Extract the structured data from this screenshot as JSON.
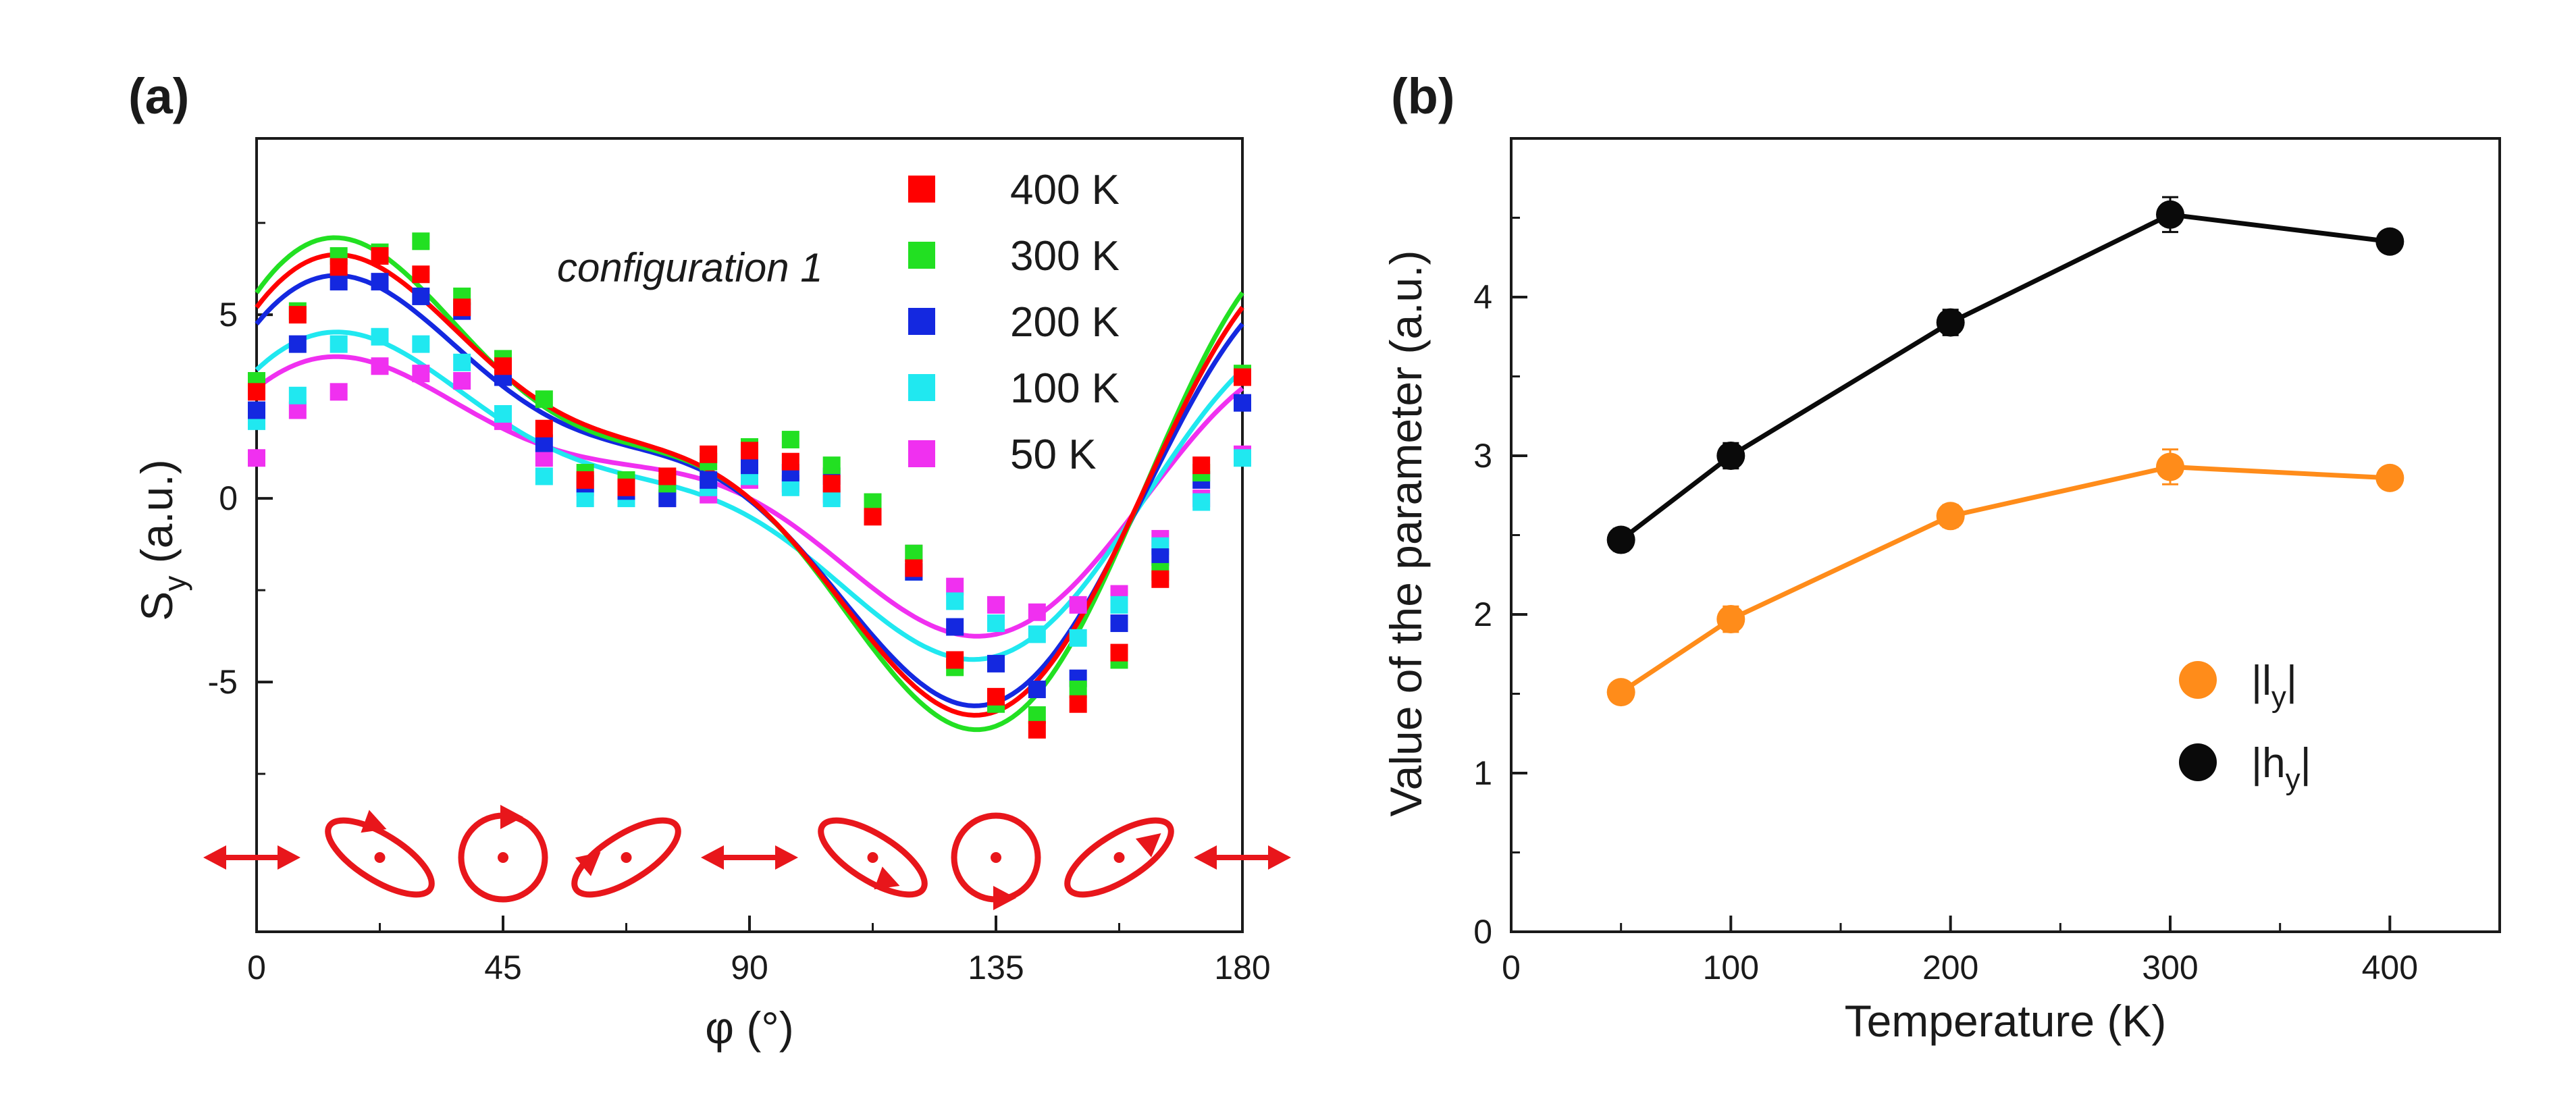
{
  "chart_data": [
    {
      "panel": "(a)",
      "type": "scatter",
      "annotation": "configuration 1",
      "xlabel": "φ (°)",
      "ylabel_main": "S",
      "ylabel_sub": "y",
      "ylabel_tail": " (a.u.)",
      "xlim": [
        0,
        180
      ],
      "ylim": [
        -11.8,
        9.8
      ],
      "xticks": [
        0,
        45,
        90,
        135,
        180
      ],
      "xtick_labels": [
        "0",
        "45",
        "90",
        "135",
        "180"
      ],
      "yticks": [
        -5,
        0,
        5
      ],
      "ytick_labels": [
        "-5",
        "0",
        "5"
      ],
      "polarization_icons": [
        {
          "kind": "linear",
          "x": 0
        },
        {
          "kind": "ellipse-cw",
          "x": 22.5
        },
        {
          "kind": "circle",
          "x": 45
        },
        {
          "kind": "ellipse-ccw",
          "x": 67.5
        },
        {
          "kind": "linear",
          "x": 90
        },
        {
          "kind": "ellipse-cw-down",
          "x": 112.5
        },
        {
          "kind": "circle-down",
          "x": 135
        },
        {
          "kind": "ellipse-ccw-up",
          "x": 157.5
        },
        {
          "kind": "linear",
          "x": 180
        }
      ],
      "x": [
        0,
        7.5,
        15,
        22.5,
        30,
        37.5,
        45,
        52.5,
        60,
        67.5,
        75,
        82.5,
        90,
        97.5,
        105,
        112.5,
        120,
        127.5,
        135,
        142.5,
        150,
        157.5,
        165,
        172.5,
        180
      ],
      "series": [
        {
          "name": "400 K",
          "color": "#ff0000",
          "fit": {
            "c": 0.7,
            "a2": 4.6,
            "b2": 2.6,
            "a4": 0.5,
            "b4": 1.9
          },
          "values": [
            2.9,
            5.0,
            6.3,
            6.6,
            6.1,
            5.2,
            3.6,
            1.9,
            0.5,
            0.3,
            0.6,
            1.2,
            1.3,
            1.0,
            0.4,
            -0.5,
            -1.9,
            -4.4,
            -5.4,
            -6.3,
            -5.6,
            -4.2,
            -2.2,
            0.9,
            3.3
          ]
        },
        {
          "name": "300 K",
          "color": "#22e022",
          "fit": {
            "c": 0.7,
            "a2": 4.8,
            "b2": 2.8,
            "a4": 0.6,
            "b4": 2.1
          },
          "values": [
            3.2,
            5.1,
            6.6,
            6.7,
            7.0,
            5.5,
            3.8,
            2.7,
            0.7,
            0.5,
            0.4,
            1.0,
            1.4,
            1.6,
            0.9,
            -0.1,
            -1.5,
            -4.6,
            -5.6,
            -5.9,
            -5.2,
            -4.4,
            -2.0,
            0.7,
            3.4
          ]
        },
        {
          "name": "200 K",
          "color": "#1428e0",
          "fit": {
            "c": 0.55,
            "a2": 4.3,
            "b2": 2.4,
            "a4": 0.45,
            "b4": 1.8
          },
          "values": [
            2.4,
            4.2,
            5.9,
            5.9,
            5.5,
            5.1,
            3.3,
            1.5,
            0.4,
            0.2,
            0.0,
            0.5,
            0.9,
            0.7,
            0.6,
            -0.2,
            -2.0,
            -3.5,
            -4.5,
            -5.2,
            -4.9,
            -3.4,
            -1.6,
            0.5,
            2.6
          ]
        },
        {
          "name": "100 K",
          "color": "#20e8f0",
          "fit": {
            "c": 0.2,
            "a2": 3.2,
            "b2": 2.0,
            "a4": 0.4,
            "b4": 1.3
          },
          "values": [
            2.1,
            2.8,
            4.2,
            4.4,
            4.2,
            3.7,
            2.3,
            0.6,
            0.0,
            0.0,
            0.1,
            0.3,
            0.6,
            0.3,
            0.0,
            -0.3,
            -2.0,
            -2.8,
            -3.4,
            -3.7,
            -3.8,
            -2.9,
            -1.3,
            -0.1,
            1.1
          ]
        },
        {
          "name": "50 K",
          "color": "#f030f0",
          "fit": {
            "c": 0.3,
            "a2": 2.8,
            "b2": 1.5,
            "a4": 0.3,
            "b4": 1.2
          },
          "values": [
            1.1,
            2.4,
            2.9,
            3.6,
            3.4,
            3.2,
            2.1,
            1.1,
            0.3,
            0.1,
            0.0,
            0.1,
            0.5,
            0.4,
            0.1,
            -0.4,
            -1.5,
            -2.4,
            -2.9,
            -3.1,
            -2.9,
            -2.6,
            -1.1,
            0.0,
            1.2
          ]
        }
      ]
    },
    {
      "panel": "(b)",
      "type": "line",
      "xlabel": "Temperature (K)",
      "ylabel": "Value of the parameter (a.u.)",
      "xlim": [
        0,
        450
      ],
      "ylim": [
        0,
        5
      ],
      "xticks": [
        0,
        100,
        200,
        300,
        400
      ],
      "xtick_labels": [
        "0",
        "100",
        "200",
        "300",
        "400"
      ],
      "yticks": [
        0,
        1,
        2,
        3,
        4
      ],
      "ytick_labels": [
        "0",
        "1",
        "2",
        "3",
        "4"
      ],
      "x": [
        50,
        100,
        200,
        300,
        400
      ],
      "series": [
        {
          "name_prefix": "|l",
          "name_sub": "y",
          "name_suffix": "|",
          "color": "#ff8c1a",
          "values": [
            1.51,
            1.97,
            2.62,
            2.93,
            2.86
          ],
          "errors": [
            0.06,
            0.08,
            0.07,
            0.11,
            0.05
          ]
        },
        {
          "name_prefix": "|h",
          "name_sub": "y",
          "name_suffix": "|",
          "color": "#0a0a0a",
          "values": [
            2.47,
            3.0,
            3.84,
            4.52,
            4.35
          ],
          "errors": [
            0.07,
            0.08,
            0.08,
            0.11,
            0.06
          ]
        }
      ]
    }
  ]
}
